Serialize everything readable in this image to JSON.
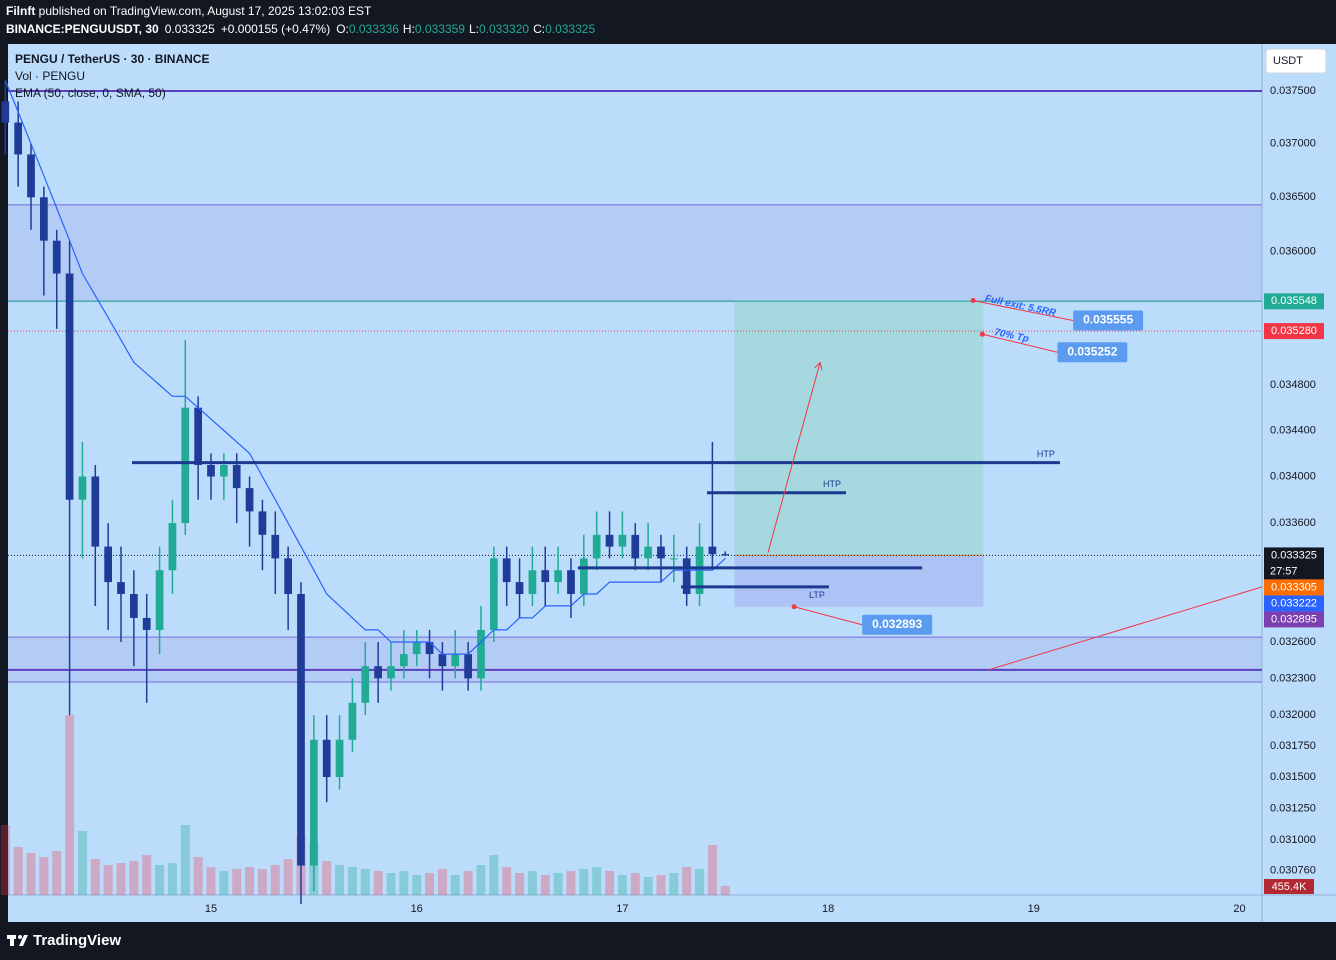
{
  "header": {
    "publisher": "Filnft",
    "published": "published on TradingView.com, August 17, 2025 13:02:03 EST",
    "symbol": "BINANCE:PENGUUSDT, 30",
    "last": "0.033325",
    "change": "+0.000155 (+0.47%)",
    "o_label": "O:",
    "o": "0.033336",
    "h_label": "H:",
    "h": "0.033359",
    "l_label": "L:",
    "l": "0.033320",
    "c_label": "C:",
    "c": "0.033325"
  },
  "chart_data": {
    "type": "candlestick",
    "title": "PENGU / TetherUS · 30 · BINANCE",
    "indicators": [
      "Vol · PENGU",
      "EMA (50, close, 0, SMA, 50)"
    ],
    "currency": "USDT",
    "log_scale": true,
    "ylim": [
      0.03057,
      0.03795
    ],
    "yticks": [
      {
        "value": 0.0375,
        "label": "0.037500"
      },
      {
        "value": 0.037,
        "label": "0.037000"
      },
      {
        "value": 0.0365,
        "label": "0.036500"
      },
      {
        "value": 0.036,
        "label": "0.036000"
      },
      {
        "value": 0.0348,
        "label": "0.034800"
      },
      {
        "value": 0.0344,
        "label": "0.034400"
      },
      {
        "value": 0.034,
        "label": "0.034000"
      },
      {
        "value": 0.0336,
        "label": "0.033600"
      },
      {
        "value": 0.0326,
        "label": "0.032600"
      },
      {
        "value": 0.0323,
        "label": "0.032300"
      },
      {
        "value": 0.032,
        "label": "0.032000"
      },
      {
        "value": 0.03175,
        "label": "0.031750"
      },
      {
        "value": 0.0315,
        "label": "0.031500"
      },
      {
        "value": 0.03125,
        "label": "0.031250"
      },
      {
        "value": 0.031,
        "label": "0.031000"
      },
      {
        "value": 0.03076,
        "label": "0.030760"
      }
    ],
    "xlim": [
      13.99,
      20.1
    ],
    "xticks": [
      15,
      16,
      17,
      18,
      19,
      20
    ],
    "x": [
      14,
      14.0625,
      14.125,
      14.1875,
      14.25,
      14.3125,
      14.375,
      14.4375,
      14.5,
      14.5625,
      14.625,
      14.6875,
      14.75,
      14.8125,
      14.875,
      14.9375,
      15,
      15.0625,
      15.125,
      15.1875,
      15.25,
      15.3125,
      15.375,
      15.4375,
      15.5,
      15.5625,
      15.625,
      15.6875,
      15.75,
      15.8125,
      15.875,
      15.9375,
      16,
      16.0625,
      16.125,
      16.1875,
      16.25,
      16.3125,
      16.375,
      16.4375,
      16.5,
      16.5625,
      16.625,
      16.6875,
      16.75,
      16.8125,
      16.875,
      16.9375,
      17,
      17.0625,
      17.125,
      17.1875,
      17.25,
      17.3125,
      17.375,
      17.4375,
      17.5
    ],
    "open": [
      0.0374,
      0.0372,
      0.0369,
      0.0365,
      0.0361,
      0.0358,
      0.0338,
      0.034,
      0.0334,
      0.0331,
      0.033,
      0.0328,
      0.0327,
      0.0332,
      0.0336,
      0.0346,
      0.0341,
      0.034,
      0.0341,
      0.0339,
      0.0337,
      0.0335,
      0.0333,
      0.033,
      0.0308,
      0.0318,
      0.0315,
      0.0318,
      0.0321,
      0.0324,
      0.0323,
      0.0324,
      0.0325,
      0.0326,
      0.0325,
      0.0324,
      0.0325,
      0.0323,
      0.0327,
      0.0333,
      0.0331,
      0.033,
      0.0332,
      0.0331,
      0.0332,
      0.033,
      0.0333,
      0.0335,
      0.0334,
      0.0335,
      0.0333,
      0.0334,
      0.0333,
      0.0333,
      0.033,
      0.0334,
      0.033336
    ],
    "high": [
      0.0376,
      0.0374,
      0.037,
      0.0366,
      0.0362,
      0.0361,
      0.0343,
      0.0341,
      0.0336,
      0.0334,
      0.0332,
      0.033,
      0.0334,
      0.0338,
      0.0352,
      0.0347,
      0.0342,
      0.0342,
      0.0342,
      0.034,
      0.0338,
      0.0337,
      0.0334,
      0.0331,
      0.032,
      0.032,
      0.032,
      0.0323,
      0.0326,
      0.0326,
      0.0326,
      0.0327,
      0.0327,
      0.0327,
      0.0326,
      0.0327,
      0.0326,
      0.0329,
      0.0334,
      0.0334,
      0.0333,
      0.0334,
      0.0334,
      0.0334,
      0.0333,
      0.0335,
      0.0337,
      0.0337,
      0.0337,
      0.0336,
      0.0336,
      0.0335,
      0.0335,
      0.0334,
      0.0336,
      0.0343,
      0.033359
    ],
    "low": [
      0.0369,
      0.0366,
      0.0362,
      0.0356,
      0.0353,
      0.032,
      0.0333,
      0.0329,
      0.0327,
      0.0326,
      0.0324,
      0.0321,
      0.0325,
      0.033,
      0.0335,
      0.0338,
      0.0338,
      0.0338,
      0.0336,
      0.0334,
      0.0332,
      0.033,
      0.0327,
      0.0305,
      0.0306,
      0.0313,
      0.0314,
      0.0317,
      0.032,
      0.0321,
      0.0322,
      0.0323,
      0.0324,
      0.0323,
      0.0322,
      0.0323,
      0.0322,
      0.0322,
      0.0326,
      0.0329,
      0.0328,
      0.0329,
      0.0329,
      0.033,
      0.0328,
      0.0329,
      0.0332,
      0.0333,
      0.0333,
      0.0332,
      0.0332,
      0.0331,
      0.0331,
      0.0329,
      0.0329,
      0.0332,
      0.03332
    ],
    "close": [
      0.0372,
      0.0369,
      0.0365,
      0.0361,
      0.0358,
      0.0338,
      0.034,
      0.0334,
      0.0331,
      0.033,
      0.0328,
      0.0327,
      0.0332,
      0.0336,
      0.0346,
      0.0341,
      0.034,
      0.0341,
      0.0339,
      0.0337,
      0.0335,
      0.0333,
      0.033,
      0.0308,
      0.0318,
      0.0315,
      0.0318,
      0.0321,
      0.0324,
      0.0323,
      0.0324,
      0.0325,
      0.0326,
      0.0325,
      0.0324,
      0.0325,
      0.0323,
      0.0327,
      0.0333,
      0.0331,
      0.033,
      0.0332,
      0.0331,
      0.0332,
      0.033,
      0.0333,
      0.0335,
      0.0334,
      0.0335,
      0.0333,
      0.0334,
      0.0333,
      0.0333,
      0.033,
      0.0334,
      0.033336,
      0.033325
    ],
    "volume": [
      3500000,
      2400000,
      2100000,
      1900000,
      2200000,
      9000000,
      3200000,
      1800000,
      1500000,
      1600000,
      1700000,
      2000000,
      1500000,
      1600000,
      3500000,
      1900000,
      1400000,
      1200000,
      1300000,
      1400000,
      1300000,
      1500000,
      1800000,
      3000000,
      2600000,
      1700000,
      1500000,
      1400000,
      1300000,
      1200000,
      1100000,
      1200000,
      1000000,
      1100000,
      1300000,
      1000000,
      1200000,
      1500000,
      2000000,
      1400000,
      1100000,
      1200000,
      1000000,
      1100000,
      1200000,
      1300000,
      1400000,
      1200000,
      1000000,
      1100000,
      900000,
      1000000,
      1100000,
      1400000,
      1300000,
      2500000,
      455400
    ],
    "volume_label": {
      "value": 455400,
      "label": "455.4K"
    },
    "ema": [
      0.0376,
      0.0373,
      0.037,
      0.0367,
      0.0364,
      0.0361,
      0.0358,
      0.0356,
      0.0354,
      0.0352,
      0.035,
      0.0349,
      0.0348,
      0.0347,
      0.0347,
      0.0346,
      0.0345,
      0.0344,
      0.0343,
      0.0342,
      0.034,
      0.0338,
      0.0336,
      0.0334,
      0.0332,
      0.033,
      0.0329,
      0.0328,
      0.0327,
      0.0327,
      0.0326,
      0.0326,
      0.0326,
      0.0326,
      0.0325,
      0.0325,
      0.0325,
      0.0326,
      0.0327,
      0.0327,
      0.0328,
      0.0328,
      0.0329,
      0.0329,
      0.0329,
      0.033,
      0.033,
      0.0331,
      0.0331,
      0.0331,
      0.0331,
      0.0331,
      0.0332,
      0.0332,
      0.0332,
      0.0332,
      0.0333
    ],
    "price_badges": [
      {
        "value": 0.035548,
        "label": "0.035548",
        "color": "#22ab94"
      },
      {
        "value": 0.03528,
        "label": "0.035280",
        "color": "#f23645"
      },
      {
        "value": 0.033325,
        "label": "0.033325",
        "color": "#131722"
      },
      {
        "value": 0.033305,
        "label": "0.033305",
        "color": "#ff6d00"
      },
      {
        "value": 0.033222,
        "label": "0.033222",
        "color": "#2962ff"
      },
      {
        "value": 0.032895,
        "label": "0.032895",
        "color": "#7b3fb0"
      }
    ],
    "countdown": "27:57",
    "zones": [
      {
        "top": 0.03643,
        "bottom": 0.03555
      },
      {
        "top": 0.03264,
        "bottom": 0.03227
      }
    ],
    "purple_lines": [
      0.0375,
      0.03237
    ],
    "levels": [
      {
        "price": 0.03412,
        "x0": 14.616,
        "x1": 19.127,
        "label": "HTP"
      },
      {
        "price": 0.03386,
        "x0": 17.411,
        "x1": 18.087,
        "label": "HTP"
      },
      {
        "price": 0.03322,
        "x0": 16.784,
        "x1": 18.457
      },
      {
        "price": 0.03306,
        "x0": 17.285,
        "x1": 18.004,
        "label": "LTP"
      }
    ],
    "position": {
      "x0": 17.545,
      "x1": 18.755,
      "entry": 0.033325,
      "target": 0.035555,
      "stop": 0.032893
    },
    "arrows": [
      {
        "x0": 17.708,
        "p0": 0.03335,
        "x1": 17.961,
        "p1": 0.035
      },
      {
        "x0": 18.78,
        "p0": 0.03237,
        "x1": 20.11,
        "p1": 0.03306
      }
    ],
    "callouts": [
      {
        "x": 18.705,
        "value": 0.035555,
        "note": "Full exit: 5.5RR"
      },
      {
        "x": 18.75,
        "value": 0.035252,
        "note": "70% Tp"
      },
      {
        "x": 17.835,
        "value": 0.032893
      }
    ]
  },
  "footer": {
    "brand": "TradingView"
  }
}
